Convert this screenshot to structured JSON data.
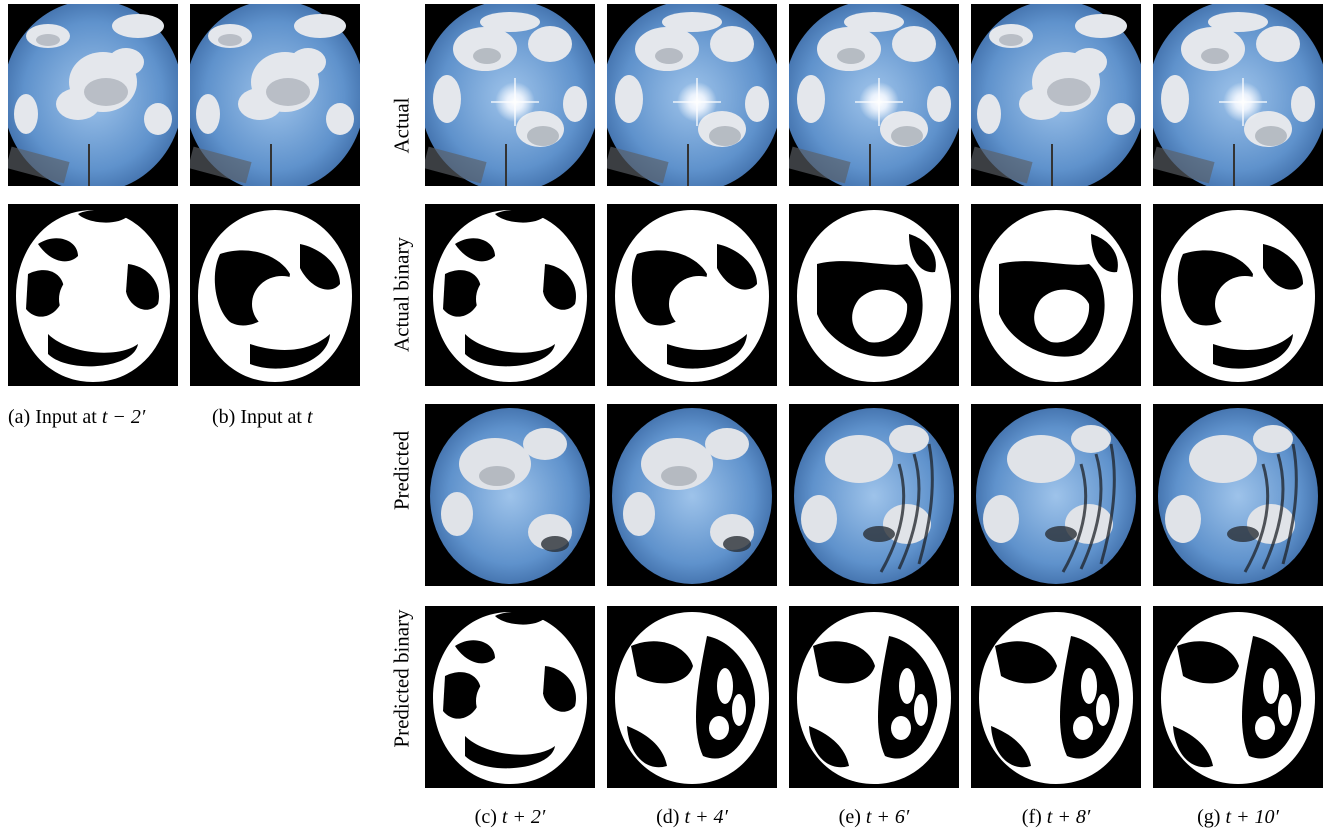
{
  "figure": {
    "rows": [
      "Actual",
      "Actual binary",
      "Predicted",
      "Predicted binary"
    ],
    "inputs": [
      {
        "caption_prefix": "(a) Input at ",
        "caption_math": "t − 2′"
      },
      {
        "caption_prefix": "(b) Input at ",
        "caption_math": "t"
      }
    ],
    "outputs": [
      {
        "caption_prefix": "(c) ",
        "caption_math": "t + 2′"
      },
      {
        "caption_prefix": "(d) ",
        "caption_math": "t + 4′"
      },
      {
        "caption_prefix": "(e) ",
        "caption_math": "t + 6′"
      },
      {
        "caption_prefix": "(f) ",
        "caption_math": "t + 8′"
      },
      {
        "caption_prefix": "(g) ",
        "caption_math": "t + 10′"
      }
    ]
  },
  "colors": {
    "sky": "#6f9fd3",
    "sky_dark": "#3f6fa8",
    "cloud": "#e6e8ec",
    "cloud_shadow": "#9aa0a8",
    "binary_cloud": "#ffffff",
    "background": "#000000"
  }
}
